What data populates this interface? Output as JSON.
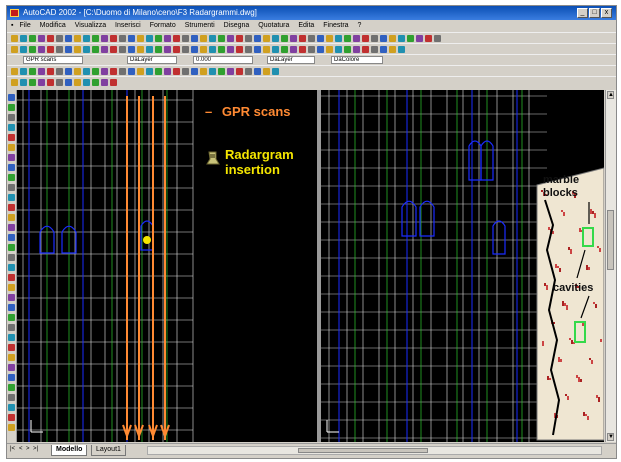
{
  "window": {
    "title": "AutoCAD 2002 - [C:\\Duomo di Milano\\ceno\\F3 Radargrammi.dwg]",
    "controls": [
      "_",
      "□",
      "x"
    ]
  },
  "menubar": {
    "items": [
      "File",
      "Modifica",
      "Visualizza",
      "Inserisci",
      "Formato",
      "Strumenti",
      "Disegna",
      "Quotatura",
      "Edita",
      "Finestra",
      "?"
    ]
  },
  "toolbar": {
    "layer_combo": "GPR scans",
    "linetype_combo": "DaLayer",
    "lineweight_combo": "DaLayer",
    "plotstyle_combo": "DaColore",
    "scale_combo": "0.000"
  },
  "colors": {
    "gpr_scan": "#ff8a33",
    "radargram_label": "#f5e600",
    "background": "#000000",
    "block_outline": "#e8e8e8",
    "arch_blue": "#1a2cff",
    "green_line": "#2fcc2f",
    "cavity_highlight": "#34d94a"
  },
  "legend": {
    "gpr_dash": "–",
    "gpr_label": "GPR scans",
    "radargram_icon": "radargram-marker-icon",
    "radargram_label_line1": "Radargram",
    "radargram_label_line2": "insertion"
  },
  "annotations": {
    "marble_line1": "marble",
    "marble_line2": "blocks",
    "cavities": "cavities"
  },
  "tabs": [
    "Modello",
    "Layout1"
  ],
  "tab_nav": [
    "|<",
    "<",
    ">",
    ">|"
  ]
}
